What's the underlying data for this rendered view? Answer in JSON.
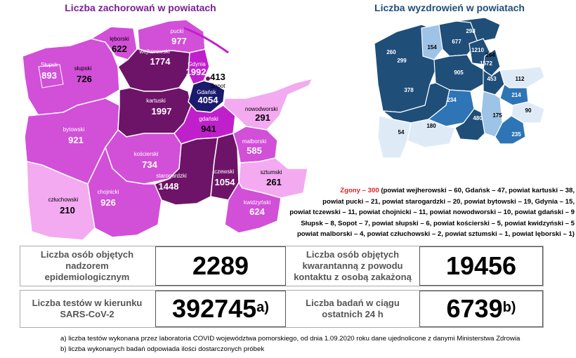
{
  "left_title": "Liczba zachorowań w powiatach",
  "right_title": "Liczba wyzdrowień w powiatach",
  "infections": {
    "pucki": "977",
    "puck_name": "pucki",
    "leborski": "622",
    "lebork_name": "lęborski",
    "wejherowski": "1774",
    "wejh_name": "wejherowski",
    "gdynia": "1992",
    "gdynia_name": "Gdynia",
    "sopot": "413",
    "sopot_name": "Sopot",
    "slupsk": "893",
    "slupsk_name": "Słupsk",
    "slupski": "726",
    "slupski_name": "słupski",
    "gdansk": "4054",
    "gdansk_name": "Gdańsk",
    "kartuski": "1997",
    "kart_name": "kartuski",
    "nowodworski": "291",
    "nowod_name": "nowodworski",
    "bytowski": "921",
    "byt_name": "bytowski",
    "gdanski": "941",
    "gdanski_name": "gdański",
    "malborski": "585",
    "malb_name": "malborski",
    "koscierski": "734",
    "kosc_name": "kościerski",
    "starogardzki": "1448",
    "star_name": "starogardzki",
    "tczewski": "1054",
    "tcz_name": "tczewski",
    "sztumski": "261",
    "szt_name": "sztumski",
    "chojnicki": "926",
    "choj_name": "chojnicki",
    "czluchowski": "210",
    "czl_name": "człuchowski",
    "kwidzynski": "624",
    "kwid_name": "kwidzyński"
  },
  "recoveries": {
    "v298": "298",
    "v154": "154",
    "v677": "677",
    "v260": "260",
    "v1210": "1210",
    "v264": "264",
    "v299": "299",
    "v1572": "1572",
    "v905": "905",
    "v453": "453",
    "v112": "112",
    "v378": "378",
    "v214": "214",
    "v234": "234",
    "v90": "90",
    "v175": "175",
    "v480": "480",
    "v180": "180",
    "v54": "54",
    "v235": "235"
  },
  "deaths": {
    "head": "Zgony – 300",
    "line1": " (powiat wejherowski – 60, Gdańsk – 47, powiat kartuski – 38,",
    "line2": "powiat pucki – 21, powiat starogardzki – 20, powiat bytowski – 19, Gdynia – 15,",
    "line3": "powiat tczewski – 11,  powiat chojnicki – 11, powiat nowodworski – 10, powiat gdański – 9",
    "line4": "Słupsk – 8, Sopot – 7, powiat słupski – 6, powiat kościerski – 5, powiat kwidzyński – 5",
    "line5": "powiat malborski – 4, powiat człuchowski – 2, powiat sztumski – 1, powiat lęborski – 1)"
  },
  "stats": {
    "supervision_label": "Liczba osób objętych nadzorem epidemiologicznym",
    "supervision_value": "2289",
    "quarantine_label": "Liczba osób objętych kwarantanną z powodu kontaktu z osobą zakażoną",
    "quarantine_value": "19456",
    "tests_label": "Liczba testów w kierunku SARS-CoV-2",
    "tests_value": "392745",
    "tests_mark": "a)",
    "daily_label": "Liczba badań w ciągu ostatnich 24 h",
    "daily_value": "6739",
    "daily_mark": "b)"
  },
  "notes": {
    "a": "a) liczba testów wykonana przez laboratoria COVID województwa pomorskiego, od dnia 1.09.2020 roku dane ujednolicone z danymi Ministerstwa Zdrowia",
    "b": "b) liczba wykonanych badań odpowiada ilości dostarczonych próbek"
  },
  "colors": {
    "infect_light": "#f3aaf0",
    "infect_mid": "#d24fd8",
    "infect_bright": "#c020cc",
    "infect_dark": "#6e1468",
    "infect_darkest": "#4a0a50",
    "infect_navy": "#1a1a6e",
    "rec_dark": "#1f4e79",
    "rec_mid": "#2e75b6",
    "rec_light": "#9dc3e6",
    "rec_pale": "#deebf7"
  }
}
